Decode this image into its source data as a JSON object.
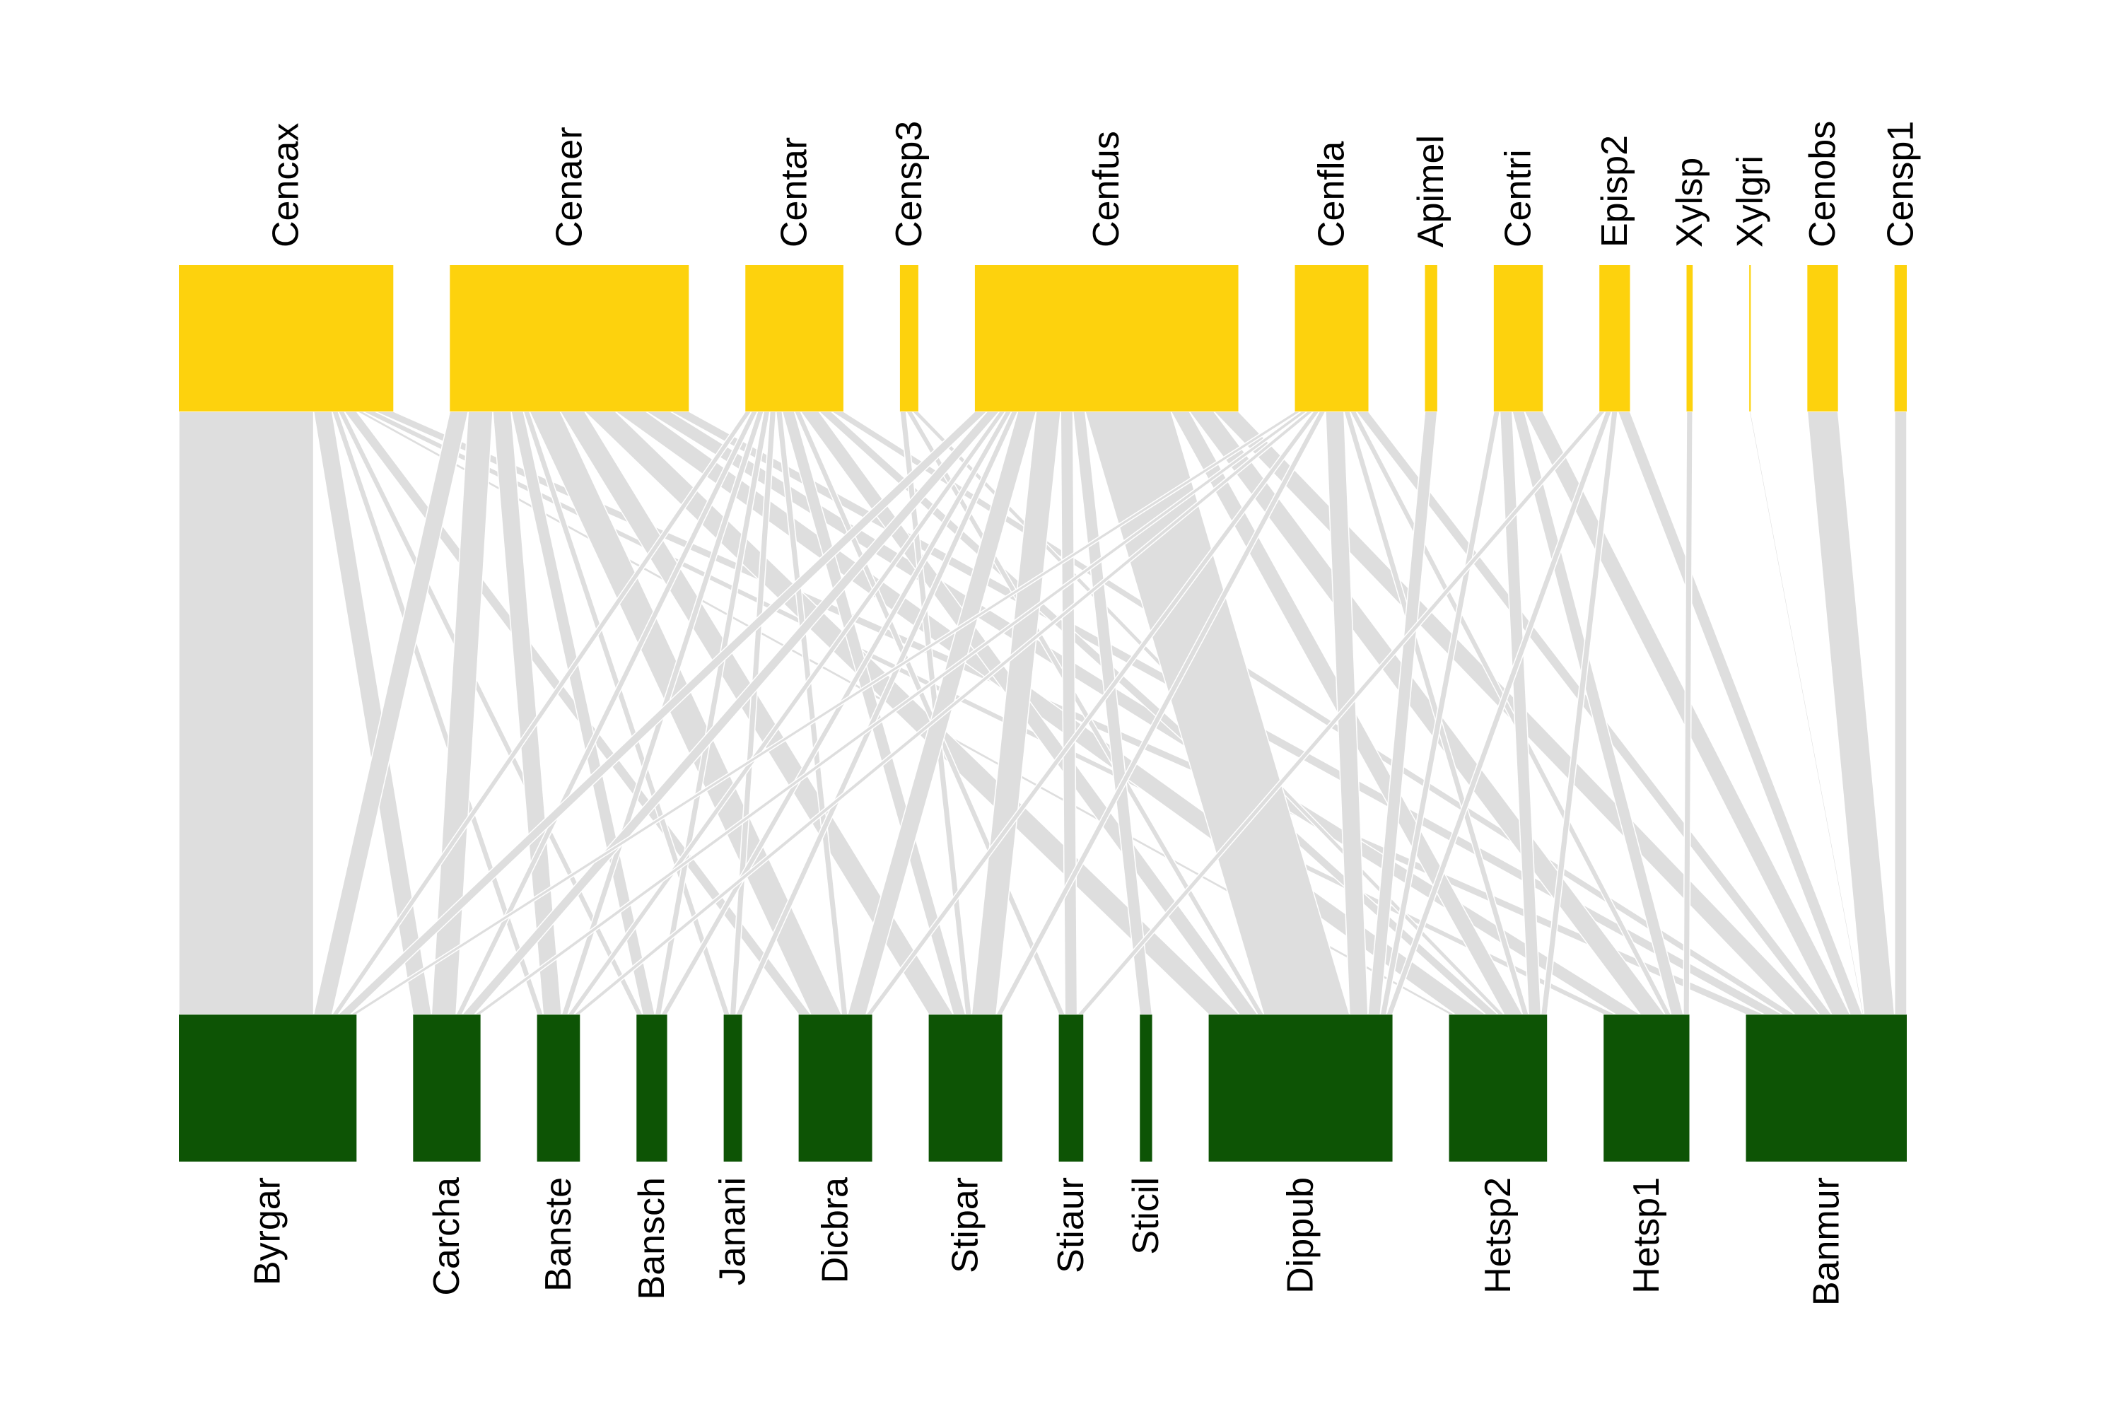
{
  "colors": {
    "upper": "#fdd20d",
    "lower": "#0d5405",
    "link": "#dedede",
    "background": "#ffffff"
  },
  "upper_nodes": [
    {
      "id": "Cencax",
      "label": "Cencax"
    },
    {
      "id": "Cenaer",
      "label": "Cenaer"
    },
    {
      "id": "Centar",
      "label": "Centar"
    },
    {
      "id": "Censp3",
      "label": "Censp3"
    },
    {
      "id": "Cenfus",
      "label": "Cenfus"
    },
    {
      "id": "Cenfla",
      "label": "Cenfla"
    },
    {
      "id": "Apimel",
      "label": "Apimel"
    },
    {
      "id": "Centri",
      "label": "Centri"
    },
    {
      "id": "Episp2",
      "label": "Episp2"
    },
    {
      "id": "Xylsp",
      "label": "Xylsp"
    },
    {
      "id": "Xylgri",
      "label": "Xylgri"
    },
    {
      "id": "Cenobs",
      "label": "Cenobs"
    },
    {
      "id": "Censp1",
      "label": "Censp1"
    }
  ],
  "lower_nodes": [
    {
      "id": "Byrgar",
      "label": "Byrgar"
    },
    {
      "id": "Carcha",
      "label": "Carcha"
    },
    {
      "id": "Banste",
      "label": "Banste"
    },
    {
      "id": "Bansch",
      "label": "Bansch"
    },
    {
      "id": "Janani",
      "label": "Janani"
    },
    {
      "id": "Dicbra",
      "label": "Dicbra"
    },
    {
      "id": "Stipar",
      "label": "Stipar"
    },
    {
      "id": "Stiaur",
      "label": "Stiaur"
    },
    {
      "id": "Sticil",
      "label": "Sticil"
    },
    {
      "id": "Dippub",
      "label": "Dippub"
    },
    {
      "id": "Hetsp2",
      "label": "Hetsp2"
    },
    {
      "id": "Hetsp1",
      "label": "Hetsp1"
    },
    {
      "id": "Banmur",
      "label": "Banmur"
    }
  ],
  "interactions": [
    [
      "Cencax",
      "Byrgar",
      22
    ],
    [
      "Cencax",
      "Carcha",
      3
    ],
    [
      "Cencax",
      "Banste",
      1
    ],
    [
      "Cencax",
      "Bansch",
      1
    ],
    [
      "Cencax",
      "Dicbra",
      2
    ],
    [
      "Cencax",
      "Hetsp2",
      1
    ],
    [
      "Cencax",
      "Hetsp1",
      2
    ],
    [
      "Cencax",
      "Banmur",
      3
    ],
    [
      "Cenaer",
      "Byrgar",
      3
    ],
    [
      "Cenaer",
      "Carcha",
      4
    ],
    [
      "Cenaer",
      "Banste",
      3
    ],
    [
      "Cenaer",
      "Bansch",
      2
    ],
    [
      "Cenaer",
      "Janani",
      1
    ],
    [
      "Cenaer",
      "Dicbra",
      5
    ],
    [
      "Cenaer",
      "Stipar",
      4
    ],
    [
      "Cenaer",
      "Dippub",
      5
    ],
    [
      "Cenaer",
      "Hetsp2",
      5
    ],
    [
      "Cenaer",
      "Hetsp1",
      4
    ],
    [
      "Cenaer",
      "Banmur",
      3
    ],
    [
      "Centar",
      "Byrgar",
      1
    ],
    [
      "Centar",
      "Carcha",
      1
    ],
    [
      "Centar",
      "Banste",
      1
    ],
    [
      "Centar",
      "Bansch",
      1
    ],
    [
      "Centar",
      "Janani",
      1
    ],
    [
      "Centar",
      "Dicbra",
      1
    ],
    [
      "Centar",
      "Stipar",
      2
    ],
    [
      "Centar",
      "Stiaur",
      1
    ],
    [
      "Centar",
      "Dippub",
      3
    ],
    [
      "Centar",
      "Hetsp2",
      2
    ],
    [
      "Centar",
      "Banmur",
      2
    ],
    [
      "Censp3",
      "Stipar",
      1
    ],
    [
      "Censp3",
      "Dippub",
      1
    ],
    [
      "Censp3",
      "Hetsp2",
      1
    ],
    [
      "Cenfus",
      "Byrgar",
      2
    ],
    [
      "Cenfus",
      "Carcha",
      2
    ],
    [
      "Cenfus",
      "Banste",
      1
    ],
    [
      "Cenfus",
      "Bansch",
      1
    ],
    [
      "Cenfus",
      "Janani",
      1
    ],
    [
      "Cenfus",
      "Dicbra",
      3
    ],
    [
      "Cenfus",
      "Stipar",
      4
    ],
    [
      "Cenfus",
      "Stiaur",
      2
    ],
    [
      "Cenfus",
      "Sticil",
      2
    ],
    [
      "Cenfus",
      "Dippub",
      14
    ],
    [
      "Cenfus",
      "Hetsp2",
      3
    ],
    [
      "Cenfus",
      "Hetsp1",
      4
    ],
    [
      "Cenfus",
      "Banmur",
      4
    ],
    [
      "Cenfla",
      "Byrgar",
      1
    ],
    [
      "Cenfla",
      "Carcha",
      1
    ],
    [
      "Cenfla",
      "Banste",
      1
    ],
    [
      "Cenfla",
      "Dicbra",
      1
    ],
    [
      "Cenfla",
      "Stipar",
      1
    ],
    [
      "Cenfla",
      "Dippub",
      3
    ],
    [
      "Cenfla",
      "Hetsp2",
      1
    ],
    [
      "Cenfla",
      "Hetsp1",
      1
    ],
    [
      "Cenfla",
      "Banmur",
      2
    ],
    [
      "Apimel",
      "Dippub",
      2
    ],
    [
      "Centri",
      "Dippub",
      1
    ],
    [
      "Centri",
      "Hetsp2",
      2
    ],
    [
      "Centri",
      "Hetsp1",
      2
    ],
    [
      "Centri",
      "Banmur",
      3
    ],
    [
      "Episp2",
      "Stiaur",
      1
    ],
    [
      "Episp2",
      "Dippub",
      1
    ],
    [
      "Episp2",
      "Hetsp2",
      1
    ],
    [
      "Episp2",
      "Banmur",
      2
    ],
    [
      "Xylsp",
      "Hetsp1",
      1
    ],
    [
      "Xylgri",
      "Banmur",
      0.25
    ],
    [
      "Cenobs",
      "Banmur",
      5
    ],
    [
      "Censp1",
      "Banmur",
      2
    ]
  ]
}
